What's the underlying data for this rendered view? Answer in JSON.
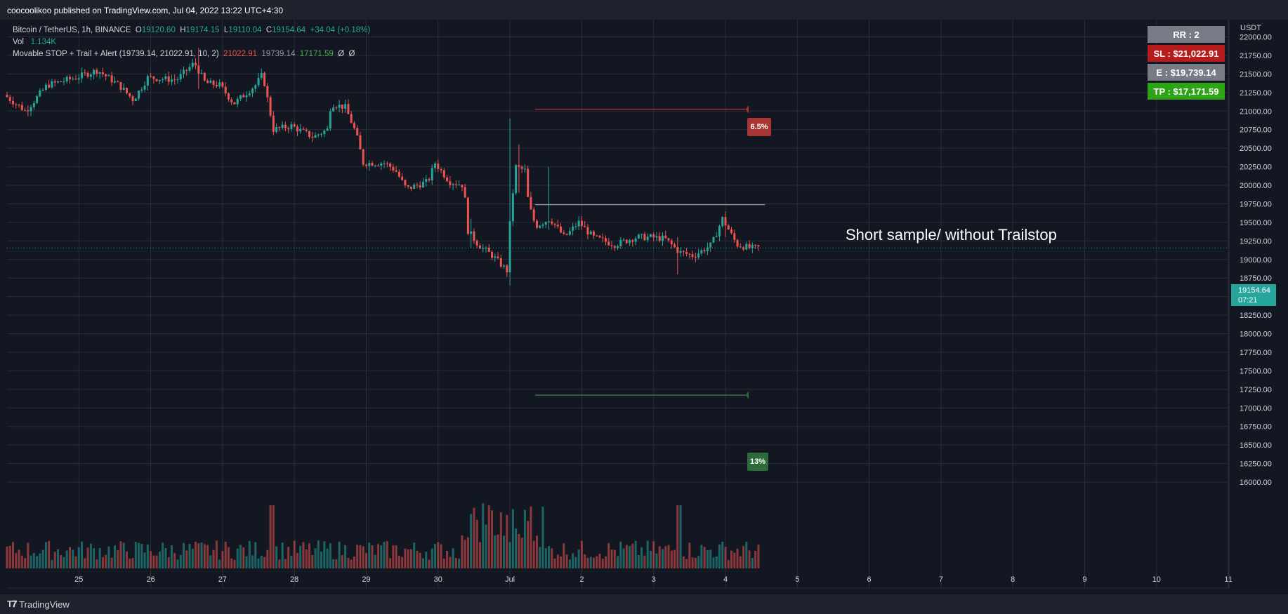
{
  "header": {
    "publisher": "coocoolikoo published on TradingView.com, Jul 04, 2022 13:22 UTC+4:30"
  },
  "legend": {
    "symbol": "Bitcoin / TetherUS, 1h, BINANCE",
    "o_label": "O",
    "o_value": "19120.60",
    "h_label": "H",
    "h_value": "19174.15",
    "l_label": "L",
    "l_value": "19110.04",
    "c_label": "C",
    "c_value": "19154.64",
    "change": "+34.04 (+0.18%)",
    "vol_label": "Vol",
    "vol_value": "1.134K",
    "indicator": "Movable STOP + Trail + Alert (19739.14, 21022.91, 10, 2)",
    "ind_v1": "21022.91",
    "ind_v2": "19739.14",
    "ind_v3": "17171.59",
    "ind_v4": "Ø",
    "ind_v5": "Ø"
  },
  "info_boxes": {
    "rr": "RR : 2",
    "sl": "SL : $21,022.91",
    "e": "E : $19,739.14",
    "tp": "TP : $17,171.59"
  },
  "annotation": "Short sample/ without Trailstop",
  "tags": {
    "stop_pct": "6.5%",
    "target_pct": "13%"
  },
  "price_label": {
    "price": "19154.64",
    "countdown": "07:21"
  },
  "footer": {
    "brand": "TradingView"
  },
  "colors": {
    "background": "#131722",
    "up": "#26a69a",
    "down": "#ef5350",
    "grid": "#2a2e39",
    "sl_box": "#b71c1c",
    "e_box": "#787b86",
    "tp_box": "#2ea317",
    "rr_box": "#787b86"
  },
  "chart_data": {
    "type": "candlestick",
    "symbol": "Bitcoin / TetherUS",
    "interval": "1h",
    "unit": "USDT",
    "y_ticks": [
      22000,
      21750,
      21500,
      21250,
      21000,
      20750,
      20500,
      20250,
      20000,
      19750,
      19500,
      19250,
      19000,
      18750,
      18500,
      18250,
      18000,
      17750,
      17500,
      17250,
      17000,
      16750,
      16500,
      16250,
      16000
    ],
    "y_tick_labels": [
      "22000.00",
      "21750.00",
      "21500.00",
      "21250.00",
      "21000.00",
      "20750.00",
      "20500.00",
      "20250.00",
      "20000.00",
      "19750.00",
      "19500.00",
      "19250.00",
      "19000.00",
      "18750.00",
      "18500.00",
      "18250.00",
      "18000.00",
      "17750.00",
      "17500.00",
      "17250.00",
      "17000.00",
      "16750.00",
      "16500.00",
      "16250.00",
      "16000.00"
    ],
    "ylim": [
      15870,
      22180
    ],
    "x_ticks": [
      "25",
      "26",
      "27",
      "28",
      "29",
      "30",
      "Jul",
      "2",
      "3",
      "4",
      "5",
      "6",
      "7",
      "8",
      "9",
      "10",
      "11"
    ],
    "last_price": 19154.64,
    "levels": {
      "stop": 21022.91,
      "entry": 19739.14,
      "target": 17171.59
    },
    "anchors": [
      {
        "d": 24.0,
        "p": 21220
      },
      {
        "d": 24.3,
        "p": 21000
      },
      {
        "d": 24.6,
        "p": 21350
      },
      {
        "d": 25.0,
        "p": 21450
      },
      {
        "d": 25.3,
        "p": 21550
      },
      {
        "d": 25.6,
        "p": 21350
      },
      {
        "d": 25.8,
        "p": 21150
      },
      {
        "d": 26.0,
        "p": 21450
      },
      {
        "d": 26.4,
        "p": 21420
      },
      {
        "d": 26.65,
        "p": 21650
      },
      {
        "d": 26.8,
        "p": 21380
      },
      {
        "d": 27.0,
        "p": 21350
      },
      {
        "d": 27.2,
        "p": 21100
      },
      {
        "d": 27.5,
        "p": 21350
      },
      {
        "d": 27.6,
        "p": 21500
      },
      {
        "d": 27.75,
        "p": 20750
      },
      {
        "d": 28.0,
        "p": 20800
      },
      {
        "d": 28.3,
        "p": 20650
      },
      {
        "d": 28.5,
        "p": 20750
      },
      {
        "d": 28.55,
        "p": 21100
      },
      {
        "d": 28.75,
        "p": 21050
      },
      {
        "d": 28.9,
        "p": 20700
      },
      {
        "d": 29.0,
        "p": 20300
      },
      {
        "d": 29.3,
        "p": 20300
      },
      {
        "d": 29.45,
        "p": 20200
      },
      {
        "d": 29.6,
        "p": 19950
      },
      {
        "d": 29.9,
        "p": 20050
      },
      {
        "d": 30.0,
        "p": 20300
      },
      {
        "d": 30.2,
        "p": 20050
      },
      {
        "d": 30.4,
        "p": 20000
      },
      {
        "d": 30.45,
        "p": 19400
      },
      {
        "d": 30.6,
        "p": 19200
      },
      {
        "d": 30.8,
        "p": 19050
      },
      {
        "d": 30.95,
        "p": 18900
      },
      {
        "d": 31.0,
        "p": 18850
      },
      {
        "d": 31.05,
        "p": 19600
      },
      {
        "d": 31.12,
        "p": 20250
      },
      {
        "d": 31.25,
        "p": 20200
      },
      {
        "d": 31.3,
        "p": 19750
      },
      {
        "d": 31.4,
        "p": 19450
      },
      {
        "d": 31.6,
        "p": 19550
      },
      {
        "d": 31.8,
        "p": 19300
      },
      {
        "d": 32.0,
        "p": 19500
      },
      {
        "d": 32.2,
        "p": 19300
      },
      {
        "d": 32.5,
        "p": 19200
      },
      {
        "d": 32.8,
        "p": 19300
      },
      {
        "d": 33.0,
        "p": 19300
      },
      {
        "d": 33.2,
        "p": 19280
      },
      {
        "d": 33.4,
        "p": 19100
      },
      {
        "d": 33.6,
        "p": 19050
      },
      {
        "d": 33.85,
        "p": 19200
      },
      {
        "d": 34.0,
        "p": 19550
      },
      {
        "d": 34.2,
        "p": 19200
      },
      {
        "d": 34.4,
        "p": 19150
      },
      {
        "d": 34.5,
        "p": 19160
      }
    ],
    "spikes": [
      {
        "d": 26.65,
        "hi": 21850,
        "lo": 21300
      },
      {
        "d": 31.02,
        "hi": 20900,
        "lo": 18650
      },
      {
        "d": 30.98,
        "hi": 19300,
        "lo": 18650
      },
      {
        "d": 31.12,
        "hi": 20550,
        "lo": 19900
      },
      {
        "d": 31.53,
        "hi": 20250,
        "lo": 19400
      },
      {
        "d": 34.0,
        "hi": 19650,
        "lo": 19300
      },
      {
        "d": 33.35,
        "hi": 19300,
        "lo": 18800
      },
      {
        "d": 30.45,
        "hi": 19550,
        "lo": 19150
      }
    ]
  }
}
